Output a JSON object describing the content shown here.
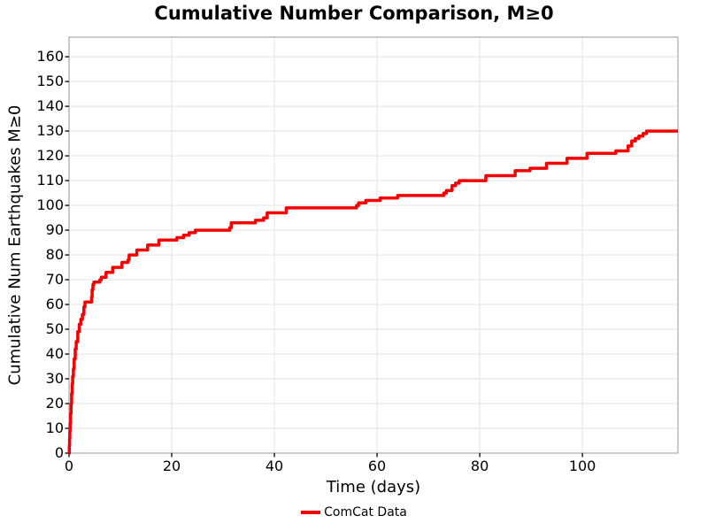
{
  "title": "Cumulative Number Comparison, M≥0",
  "axes": {
    "x_label": "Time (days)",
    "y_label": "Cumulative Num Earthquakes M≥0"
  },
  "legend": [
    {
      "label": "ComCat Data",
      "color": "#F40000"
    }
  ],
  "colors": {
    "line": "#F40000",
    "grid": "#E7E7E7",
    "panel_border": "#A8A8A8",
    "tick": "#000000",
    "background": "#FFFFFF",
    "text": "#000000"
  },
  "chart_data": {
    "type": "line",
    "subtype": "step-cumulative",
    "title": "Cumulative Number Comparison, M≥0",
    "xlabel": "Time (days)",
    "ylabel": "Cumulative Num Earthquakes M≥0",
    "xlim": [
      0,
      118.6
    ],
    "ylim": [
      0,
      167.9
    ],
    "x_ticks": [
      0,
      20,
      40,
      60,
      80,
      100
    ],
    "y_ticks": [
      0,
      10,
      20,
      30,
      40,
      50,
      60,
      70,
      80,
      90,
      100,
      110,
      120,
      130,
      140,
      150,
      160
    ],
    "grid": true,
    "legend_position": "bottom-center",
    "series": [
      {
        "name": "ComCat Data",
        "color": "#F40000",
        "line_width": 3.5,
        "step_days": [
          0,
          0.05,
          0.1,
          0.15,
          0.2,
          0.3,
          0.4,
          0.5,
          0.6,
          0.7,
          0.85,
          1.0,
          1.2,
          1.4,
          1.7,
          2.0,
          2.3,
          2.6,
          2.9,
          3.1,
          4.4,
          4.5,
          4.65,
          4.85,
          6.0,
          6.3,
          7.2,
          8.5,
          10.3,
          11.5,
          11.7,
          13.2,
          15.3,
          17.5,
          21.0,
          22.3,
          23.4,
          24.6,
          31.3,
          31.6,
          36.3,
          37.9,
          38.6,
          42.3,
          56.0,
          56.4,
          57.8,
          60.6,
          64.0,
          73.0,
          73.5,
          74.6,
          75.3,
          76.0,
          81.2,
          86.9,
          89.8,
          93.0,
          97.0,
          100.9,
          106.5,
          108.9,
          109.6,
          110.3,
          111.0,
          111.8,
          112.5,
          118.6
        ],
        "cumulative": [
          0,
          3,
          6,
          9,
          12,
          16,
          20,
          24,
          28,
          31,
          34,
          38,
          42,
          45,
          49,
          52,
          54,
          56,
          59,
          61,
          63,
          66,
          68,
          69,
          70,
          71,
          73,
          75,
          77,
          78,
          80,
          82,
          84,
          86,
          87,
          88,
          89,
          90,
          91,
          93,
          94,
          95,
          97,
          99,
          100,
          101,
          102,
          103,
          104,
          105,
          106,
          108,
          109,
          110,
          112,
          114,
          115,
          117,
          119,
          121,
          122,
          124,
          126,
          127,
          128,
          129,
          130,
          130
        ]
      }
    ]
  }
}
